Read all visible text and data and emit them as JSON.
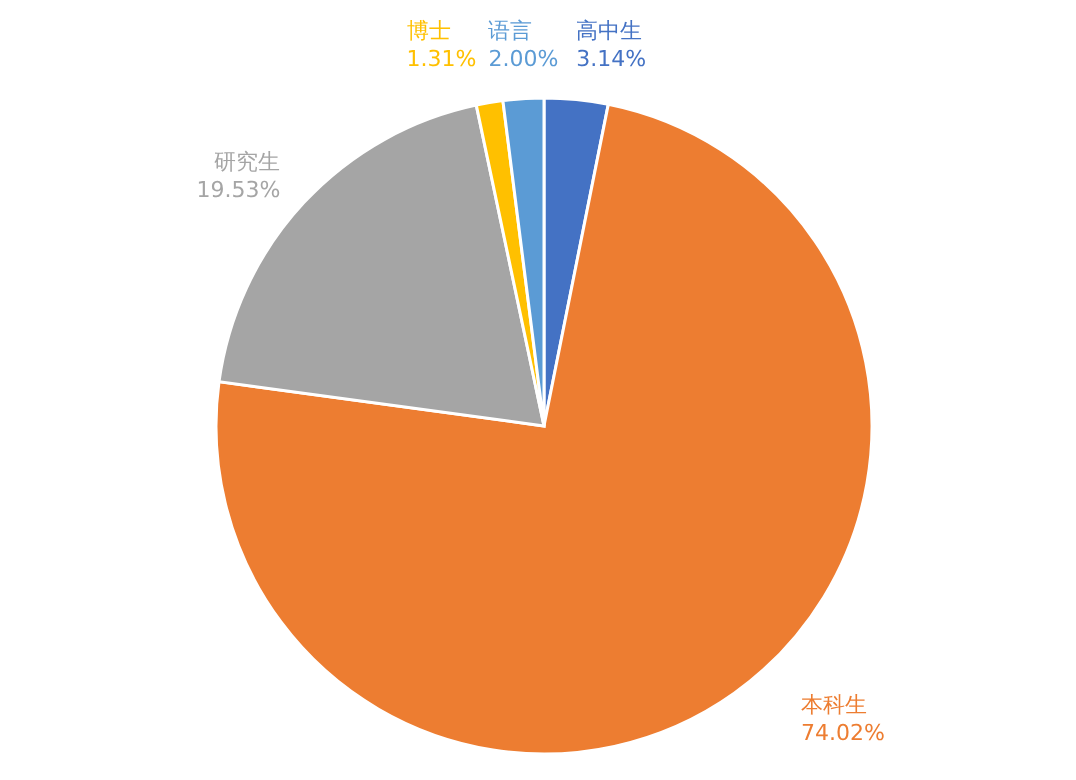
{
  "chart_data": {
    "type": "pie",
    "categories": [
      "高中生",
      "本科生",
      "研究生",
      "博士",
      "语言"
    ],
    "values": [
      3.14,
      74.02,
      19.53,
      1.31,
      2.0
    ],
    "value_labels": [
      "3.14%",
      "74.02%",
      "19.53%",
      "1.31%",
      "2.00%"
    ],
    "colors": [
      "#4472c4",
      "#ed7d31",
      "#a5a5a5",
      "#ffc000",
      "#5b9bd5"
    ]
  }
}
